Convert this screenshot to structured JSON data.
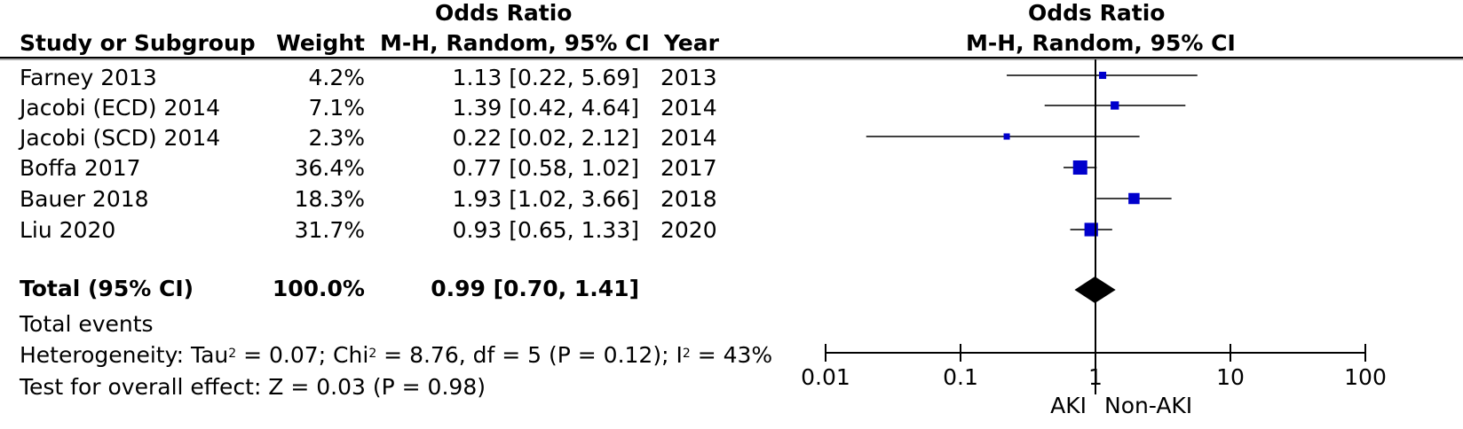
{
  "header": {
    "group_title_left": "Odds Ratio",
    "group_title_right": "Odds Ratio",
    "col_study": "Study or Subgroup",
    "col_weight": "Weight",
    "col_or": "M-H, Random, 95% CI",
    "col_year": "Year",
    "col_plot": "M-H, Random, 95% CI"
  },
  "studies": [
    {
      "name": "Farney 2013",
      "weight": "4.2%",
      "ci_text": "1.13 [0.22, 5.69]",
      "year": "2013"
    },
    {
      "name": "Jacobi (ECD) 2014",
      "weight": "7.1%",
      "ci_text": "1.39 [0.42, 4.64]",
      "year": "2014"
    },
    {
      "name": "Jacobi (SCD) 2014",
      "weight": "2.3%",
      "ci_text": "0.22 [0.02, 2.12]",
      "year": "2014"
    },
    {
      "name": "Boffa 2017",
      "weight": "36.4%",
      "ci_text": "0.77 [0.58, 1.02]",
      "year": "2017"
    },
    {
      "name": "Bauer 2018",
      "weight": "18.3%",
      "ci_text": "1.93 [1.02, 3.66]",
      "year": "2018"
    },
    {
      "name": "Liu 2020",
      "weight": "31.7%",
      "ci_text": "0.93 [0.65, 1.33]",
      "year": "2020"
    }
  ],
  "total": {
    "label": "Total (95% CI)",
    "weight": "100.0%",
    "ci_text": "0.99 [0.70, 1.41]"
  },
  "footer": {
    "events_label": "Total events",
    "heterogeneity": {
      "prefix": "Heterogeneity: Tau",
      "sup1": "2",
      "mid": " = 0.07; Chi",
      "sup2": "2",
      "mid2": " = 8.76, df = 5 (P = 0.12); I",
      "sup3": "2",
      "suffix": " = 43%"
    },
    "overall_effect": "Test for overall effect: Z = 0.03 (P = 0.98)"
  },
  "chart_data": {
    "type": "forest",
    "scale": "log",
    "xlim": [
      0.01,
      100
    ],
    "ticks": [
      0.01,
      0.1,
      1,
      10,
      100
    ],
    "tick_labels": [
      "0.01",
      "0.1",
      "1",
      "10",
      "100"
    ],
    "favours_left": "AKI",
    "favours_right": "Non-AKI",
    "series": [
      {
        "study": "Farney 2013",
        "or": 1.13,
        "lower": 0.22,
        "upper": 5.69,
        "weight": 4.2
      },
      {
        "study": "Jacobi (ECD) 2014",
        "or": 1.39,
        "lower": 0.42,
        "upper": 4.64,
        "weight": 7.1
      },
      {
        "study": "Jacobi (SCD) 2014",
        "or": 0.22,
        "lower": 0.02,
        "upper": 2.12,
        "weight": 2.3
      },
      {
        "study": "Boffa 2017",
        "or": 0.77,
        "lower": 0.58,
        "upper": 1.02,
        "weight": 36.4
      },
      {
        "study": "Bauer 2018",
        "or": 1.93,
        "lower": 1.02,
        "upper": 3.66,
        "weight": 18.3
      },
      {
        "study": "Liu 2020",
        "or": 0.93,
        "lower": 0.65,
        "upper": 1.33,
        "weight": 31.7
      }
    ],
    "pooled": {
      "or": 0.99,
      "lower": 0.7,
      "upper": 1.41
    },
    "colors": {
      "marker": "#0000cc",
      "line": "#000000",
      "diamond": "#000000"
    }
  }
}
